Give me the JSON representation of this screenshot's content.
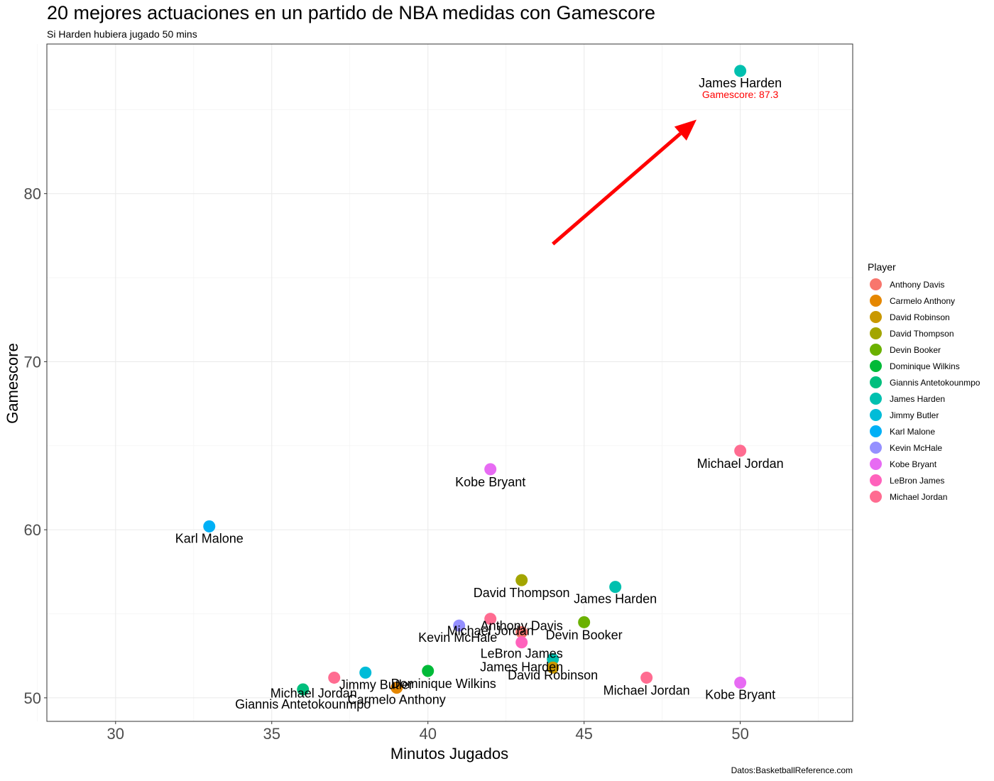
{
  "chart_data": {
    "type": "scatter",
    "title": "20 mejores actuaciones en un partido de NBA medidas con Gamescore",
    "subtitle": "Si Harden hubiera jugado 50 mins",
    "caption": "Datos:BasketballReference.com",
    "xlabel": "Minutos Jugados",
    "ylabel": "Gamescore",
    "xlim": [
      27.8,
      53.6
    ],
    "ylim": [
      48.6,
      88.9
    ],
    "xticks": [
      30,
      35,
      40,
      45,
      50
    ],
    "yticks": [
      50,
      60,
      70,
      80
    ],
    "grid": true,
    "legend": {
      "title": "Player",
      "position": "right",
      "entries": [
        {
          "name": "Anthony Davis",
          "color": "#F8766D"
        },
        {
          "name": "Carmelo Anthony",
          "color": "#E58700"
        },
        {
          "name": "David Robinson",
          "color": "#C99800"
        },
        {
          "name": "David Thompson",
          "color": "#A3A500"
        },
        {
          "name": "Devin Booker",
          "color": "#6BB100"
        },
        {
          "name": "Dominique Wilkins",
          "color": "#00BA38"
        },
        {
          "name": "Giannis Antetokounmpo",
          "color": "#00BF7D"
        },
        {
          "name": "James Harden",
          "color": "#00C0AF"
        },
        {
          "name": "Jimmy Butler",
          "color": "#00BCD8"
        },
        {
          "name": "Karl Malone",
          "color": "#00B0F6"
        },
        {
          "name": "Kevin McHale",
          "color": "#9590FF"
        },
        {
          "name": "Kobe Bryant",
          "color": "#E76BF3"
        },
        {
          "name": "LeBron James",
          "color": "#FF62BC"
        },
        {
          "name": "Michael Jordan",
          "color": "#FF6C91"
        }
      ]
    },
    "points": [
      {
        "player": "James Harden",
        "x": 50,
        "y": 87.3,
        "color": "#00C0AF"
      },
      {
        "player": "Michael Jordan",
        "x": 50,
        "y": 64.7,
        "color": "#FF6C91"
      },
      {
        "player": "Kobe Bryant",
        "x": 42,
        "y": 63.6,
        "color": "#E76BF3"
      },
      {
        "player": "Karl Malone",
        "x": 33,
        "y": 60.2,
        "color": "#00B0F6"
      },
      {
        "player": "David Thompson",
        "x": 43,
        "y": 57.0,
        "color": "#A3A500"
      },
      {
        "player": "James Harden",
        "x": 46,
        "y": 56.6,
        "color": "#00C0AF"
      },
      {
        "player": "Michael Jordan",
        "x": 42,
        "y": 54.7,
        "color": "#FF6C91"
      },
      {
        "player": "Devin Booker",
        "x": 45,
        "y": 54.5,
        "color": "#6BB100"
      },
      {
        "player": "Kevin McHale",
        "x": 41,
        "y": 54.3,
        "color": "#9590FF"
      },
      {
        "player": "Anthony Davis",
        "x": 43,
        "y": 53.9,
        "color": "#F8766D"
      },
      {
        "player": "LeBron James",
        "x": 43,
        "y": 53.3,
        "color": "#FF62BC"
      },
      {
        "player": "James Harden",
        "x": 44,
        "y": 52.3,
        "color": "#00C0AF"
      },
      {
        "player": "David Robinson",
        "x": 44,
        "y": 51.8,
        "color": "#C99800"
      },
      {
        "player": "Dominique Wilkins",
        "x": 40,
        "y": 51.6,
        "color": "#00BA38"
      },
      {
        "player": "Jimmy Butler",
        "x": 38,
        "y": 51.5,
        "color": "#00BCD8"
      },
      {
        "player": "Michael Jordan",
        "x": 37,
        "y": 51.2,
        "color": "#FF6C91"
      },
      {
        "player": "Michael Jordan",
        "x": 47,
        "y": 51.2,
        "color": "#FF6C91"
      },
      {
        "player": "Kobe Bryant",
        "x": 50,
        "y": 50.9,
        "color": "#E76BF3"
      },
      {
        "player": "Carmelo Anthony",
        "x": 39,
        "y": 50.6,
        "color": "#E58700"
      },
      {
        "player": "Giannis Antetokounmpo",
        "x": 36,
        "y": 50.5,
        "color": "#00BF7D"
      }
    ],
    "annotation": {
      "text": "Gamescore: 87.3",
      "x": 50,
      "y": 85.9,
      "color": "#FF0000"
    },
    "arrow": {
      "from": [
        44,
        77.0
      ],
      "to": [
        48.6,
        84.4
      ],
      "color": "#FF0000"
    }
  }
}
